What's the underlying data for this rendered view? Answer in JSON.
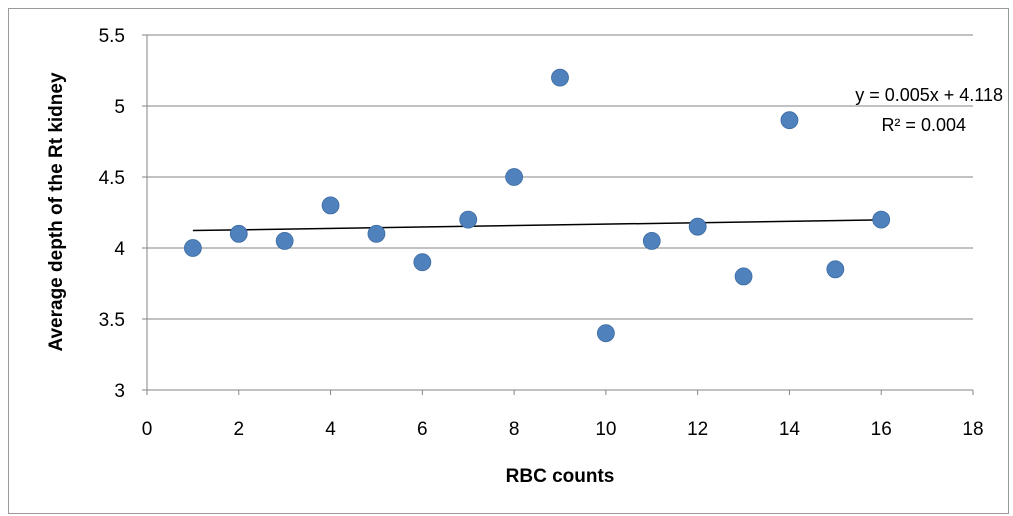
{
  "chart_data": {
    "type": "scatter",
    "title": "",
    "xlabel": "RBC counts",
    "ylabel": "Average depth of the Rt kidney",
    "xlim": [
      0,
      18
    ],
    "ylim": [
      3,
      5.5
    ],
    "x_ticks": [
      "0",
      "2",
      "4",
      "6",
      "8",
      "10",
      "12",
      "14",
      "16",
      "18"
    ],
    "y_ticks": [
      "3",
      "3.5",
      "4",
      "4.5",
      "5",
      "5.5"
    ],
    "grid": "horizontal",
    "legend": "none",
    "points": [
      {
        "x": 1,
        "y": 4.0
      },
      {
        "x": 2,
        "y": 4.1
      },
      {
        "x": 3,
        "y": 4.05
      },
      {
        "x": 4,
        "y": 4.3
      },
      {
        "x": 5,
        "y": 4.1
      },
      {
        "x": 6,
        "y": 3.9
      },
      {
        "x": 7,
        "y": 4.2
      },
      {
        "x": 8,
        "y": 4.5
      },
      {
        "x": 9,
        "y": 5.2
      },
      {
        "x": 10,
        "y": 3.4
      },
      {
        "x": 11,
        "y": 4.05
      },
      {
        "x": 12,
        "y": 4.15
      },
      {
        "x": 13,
        "y": 3.8
      },
      {
        "x": 14,
        "y": 4.9
      },
      {
        "x": 15,
        "y": 3.85
      },
      {
        "x": 16,
        "y": 4.2
      }
    ],
    "trendline": {
      "type": "linear",
      "slope": 0.005,
      "intercept": 4.118,
      "x_range": [
        1,
        16
      ],
      "equation": "y = 0.005x + 4.118",
      "r_squared": "R² = 0.004"
    },
    "colors": {
      "marker": "#4f81bd",
      "trendline": "#000000",
      "gridline": "#868686",
      "axis": "#868686"
    }
  }
}
